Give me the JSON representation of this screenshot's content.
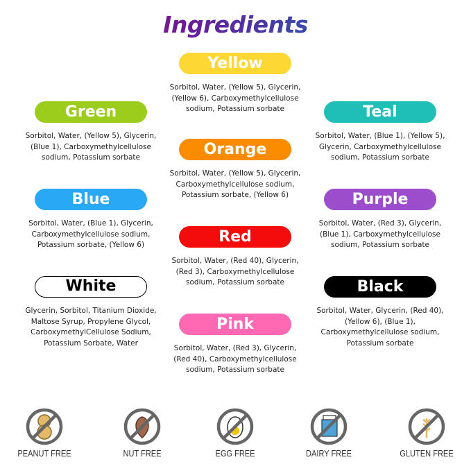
{
  "title": "Ingredients",
  "colors": [
    {
      "name": "Yellow",
      "color": "#fdd835",
      "ingredients": "Sorbitol, Water, (Yellow 5), Glycerin, (Yellow 6), Carboxymethylcellulose sodium, Potassium sorbate"
    },
    {
      "name": "Green",
      "color": "#9ccc1c",
      "ingredients": "Sorbitol, Water, (Yellow 5), Glycerin, (Blue 1), Carboxymethylcellulose sodium, Potassium sorbate"
    },
    {
      "name": "Teal",
      "color": "#1fbfb8",
      "ingredients": "Sorbitol, Water, (Blue 1), (Yellow 5), Glycerin, Carboxymethylcellulose sodium, Potassium sorbate"
    },
    {
      "name": "Orange",
      "color": "#fb8c00",
      "ingredients": "Sorbitol, Water, (Yellow 5), Glycerin, Carboxymethylcellulose sodium, Potassium sorbate, (Yellow 6)"
    },
    {
      "name": "Blue",
      "color": "#29a9f5",
      "ingredients": "Sorbitol, Water, (Blue 1), Glycerin, Carboxymethylcellulose sodium, Potassium sorbate, (Yellow 6)"
    },
    {
      "name": "Purple",
      "color": "#9c4dcc",
      "ingredients": "Sorbitol, Water, (Red 3), Glycerin, (Blue 1), Carboxymethylcellulose sodium, Potassium sorbate"
    },
    {
      "name": "Red",
      "color": "#f40c0c",
      "ingredients": "Sorbitol, Water, (Red 40), Glycerin, (Red 3), Carboxymethylcellulose sodium, Potassium sorbate"
    },
    {
      "name": "White",
      "color": "#ffffff",
      "ingredients": "Glycerin, Sorbitol, Titanium Dioxide, Maltose Syrup, Propylene Glycol, CarboxymethylCellulose Sodium, Potassium Sorbate, Water"
    },
    {
      "name": "Black",
      "color": "#000000",
      "ingredients": "Sorbitol, Water, Glycerin, (Red 40), (Yellow 6), (Blue 1), Carboxymethylcellulose sodium, Potassium sorbate"
    },
    {
      "name": "Pink",
      "color": "#ff69b4",
      "ingredients": "Sorbitol, Water, (Red 3), Glycerin, (Red 40), Carboxymethylcellulose sodium, Potassium sorbate"
    }
  ],
  "badges": [
    {
      "label": "PEANUT FREE",
      "icon": "peanut-free-icon"
    },
    {
      "label": "NUT FREE",
      "icon": "nut-free-icon"
    },
    {
      "label": "EGG FREE",
      "icon": "egg-free-icon"
    },
    {
      "label": "DAIRY FREE",
      "icon": "dairy-free-icon"
    },
    {
      "label": "GLUTEN FREE",
      "icon": "gluten-free-icon"
    }
  ]
}
